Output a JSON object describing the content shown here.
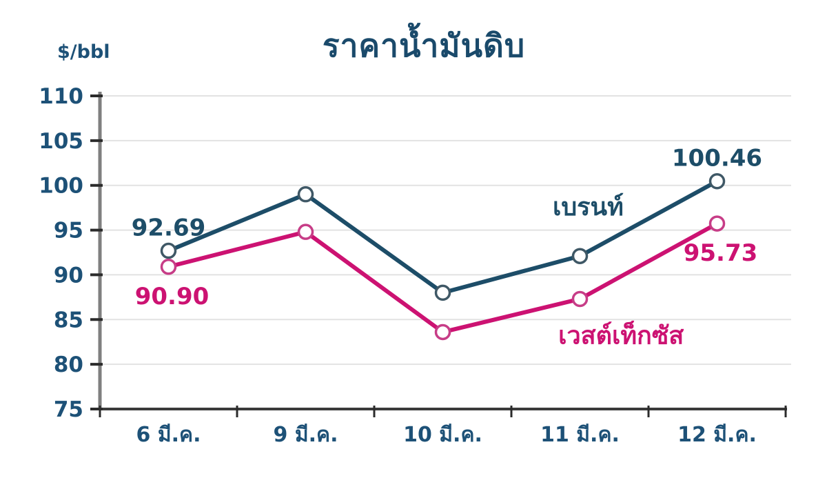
{
  "page": {
    "background": "#ffffff"
  },
  "header": {
    "title": "ราคาน้ำมันดิบ",
    "unit_label": "$/bbl"
  },
  "colors": {
    "title_text": "#1a4a6b",
    "axis_text": "#1d5177",
    "grid_line": "#e2e2e2",
    "y_axis_line": "#7f7f7f",
    "x_axis_line": "#3a3a3a",
    "tick_mark": "#2b2b2b",
    "marker_fill": "#ffffff",
    "brent": "#1d4d68",
    "west_texas": "#cc1272"
  },
  "chart_data": {
    "type": "line",
    "title": "ราคาน้ำมันดิบ",
    "xlabel": "",
    "ylabel": "$/bbl",
    "categories": [
      "6 มี.ค.",
      "9 มี.ค.",
      "10 มี.ค.",
      "11 มี.ค.",
      "12 มี.ค."
    ],
    "series": [
      {
        "name": "เบรนท์",
        "color": "#1d4d68",
        "marker_stroke": "#3f5866",
        "values": [
          92.69,
          99.0,
          88.0,
          92.1,
          100.46
        ]
      },
      {
        "name": "เวสต์เท็กซัส",
        "color": "#cc1272",
        "marker_stroke": "#c73d87",
        "values": [
          90.9,
          94.8,
          83.6,
          87.3,
          95.73
        ]
      }
    ],
    "ylim": [
      75,
      110
    ],
    "yticks": [
      110,
      105,
      100,
      95,
      90,
      85,
      80,
      75
    ],
    "grid": true,
    "legend_position": "inline-labels",
    "inline_legend": [
      {
        "text": "เบรนท์",
        "series": 0,
        "x_category": 3.06,
        "y_value": 97.6
      },
      {
        "text": "เวสต์เท็กซัส",
        "series": 1,
        "x_category": 3.3,
        "y_value": 83.2
      }
    ],
    "annotations": [
      {
        "series": 0,
        "point": 0,
        "text": "92.69",
        "placement": "above"
      },
      {
        "series": 0,
        "point": 4,
        "text": "100.46",
        "placement": "above"
      },
      {
        "series": 1,
        "point": 0,
        "text": "90.90",
        "placement": "below"
      },
      {
        "series": 1,
        "point": 4,
        "text": "95.73",
        "placement": "below"
      }
    ]
  }
}
